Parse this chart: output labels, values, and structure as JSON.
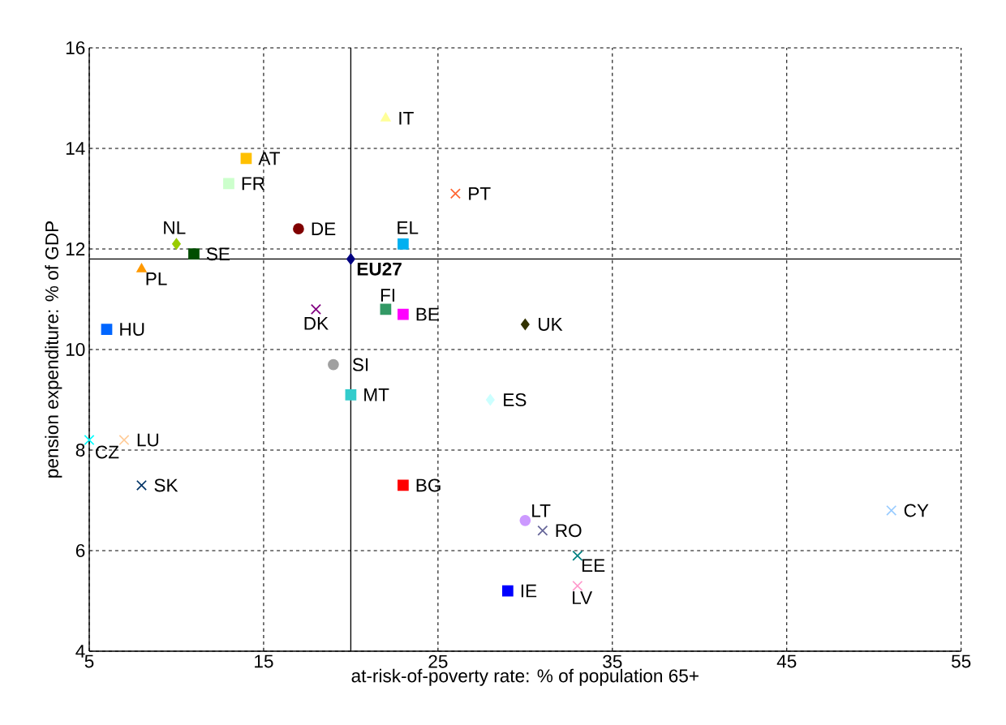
{
  "chart_data": {
    "type": "scatter",
    "xlabel": "at-risk-of-poverty rate: % of population 65+",
    "ylabel": "pension expenditure: % of GDP",
    "xlim": [
      5,
      55
    ],
    "ylim": [
      4,
      16
    ],
    "xticks": [
      5,
      15,
      25,
      35,
      45,
      55
    ],
    "yticks": [
      4,
      6,
      8,
      10,
      12,
      14,
      16
    ],
    "grid": true,
    "ref_lines": [
      {
        "axis": "x",
        "value": 20,
        "color": "#000000"
      },
      {
        "axis": "y",
        "value": 11.8,
        "color": "#000000"
      }
    ],
    "series": [
      {
        "name": "IT",
        "color": "#ffff99",
        "marker": "triangle",
        "x": [
          22
        ],
        "values": [
          14.6
        ]
      },
      {
        "name": "AT",
        "color": "#ffc000",
        "marker": "square",
        "x": [
          14
        ],
        "values": [
          13.8
        ]
      },
      {
        "name": "FR",
        "color": "#ccffcc",
        "marker": "square",
        "x": [
          13
        ],
        "values": [
          13.3
        ]
      },
      {
        "name": "PT",
        "color": "#ff6633",
        "marker": "cross",
        "x": [
          26
        ],
        "values": [
          13.1
        ]
      },
      {
        "name": "DE",
        "color": "#800000",
        "marker": "circle",
        "x": [
          17
        ],
        "values": [
          12.4
        ]
      },
      {
        "name": "NL",
        "color": "#99cc00",
        "marker": "diamond",
        "x": [
          10
        ],
        "values": [
          12.1
        ]
      },
      {
        "name": "EL",
        "color": "#00b0f0",
        "marker": "square",
        "x": [
          23
        ],
        "values": [
          12.1
        ]
      },
      {
        "name": "SE",
        "color": "#004d00",
        "marker": "square",
        "x": [
          11
        ],
        "values": [
          11.9
        ]
      },
      {
        "name": "PL",
        "color": "#ff9900",
        "marker": "triangle",
        "x": [
          8
        ],
        "values": [
          11.6
        ]
      },
      {
        "name": "EU27",
        "color": "#000080",
        "marker": "diamond",
        "x": [
          20
        ],
        "values": [
          11.8
        ]
      },
      {
        "name": "DK",
        "color": "#800080",
        "marker": "cross",
        "x": [
          18
        ],
        "values": [
          10.8
        ]
      },
      {
        "name": "FI",
        "color": "#339966",
        "marker": "square",
        "x": [
          22
        ],
        "values": [
          10.8
        ]
      },
      {
        "name": "BE",
        "color": "#ff00ff",
        "marker": "square",
        "x": [
          23
        ],
        "values": [
          10.7
        ]
      },
      {
        "name": "UK",
        "color": "#333300",
        "marker": "diamond",
        "x": [
          30
        ],
        "values": [
          10.5
        ]
      },
      {
        "name": "HU",
        "color": "#0066ff",
        "marker": "square",
        "x": [
          6
        ],
        "values": [
          10.4
        ]
      },
      {
        "name": "SI",
        "color": "#a0a0a0",
        "marker": "circle",
        "x": [
          19
        ],
        "values": [
          9.7
        ]
      },
      {
        "name": "MT",
        "color": "#33cccc",
        "marker": "square",
        "x": [
          20
        ],
        "values": [
          9.1
        ]
      },
      {
        "name": "ES",
        "color": "#ccffff",
        "marker": "diamond",
        "x": [
          28
        ],
        "values": [
          9.0
        ]
      },
      {
        "name": "CZ",
        "color": "#00ffff",
        "marker": "cross",
        "x": [
          5
        ],
        "values": [
          8.2
        ]
      },
      {
        "name": "LU",
        "color": "#ffcc99",
        "marker": "cross",
        "x": [
          7
        ],
        "values": [
          8.2
        ]
      },
      {
        "name": "SK",
        "color": "#003366",
        "marker": "cross",
        "x": [
          8
        ],
        "values": [
          7.3
        ]
      },
      {
        "name": "BG",
        "color": "#ff0000",
        "marker": "square",
        "x": [
          23
        ],
        "values": [
          7.3
        ]
      },
      {
        "name": "LT",
        "color": "#cc99ff",
        "marker": "circle",
        "x": [
          30
        ],
        "values": [
          6.6
        ]
      },
      {
        "name": "RO",
        "color": "#666699",
        "marker": "cross",
        "x": [
          31
        ],
        "values": [
          6.4
        ]
      },
      {
        "name": "CY",
        "color": "#99ccff",
        "marker": "cross",
        "x": [
          51
        ],
        "values": [
          6.8
        ]
      },
      {
        "name": "EE",
        "color": "#008080",
        "marker": "cross",
        "x": [
          33
        ],
        "values": [
          5.9
        ]
      },
      {
        "name": "IE",
        "color": "#0000ff",
        "marker": "square",
        "x": [
          29
        ],
        "values": [
          5.2
        ]
      },
      {
        "name": "LV",
        "color": "#ff99cc",
        "marker": "cross",
        "x": [
          33
        ],
        "values": [
          5.3
        ]
      }
    ]
  }
}
